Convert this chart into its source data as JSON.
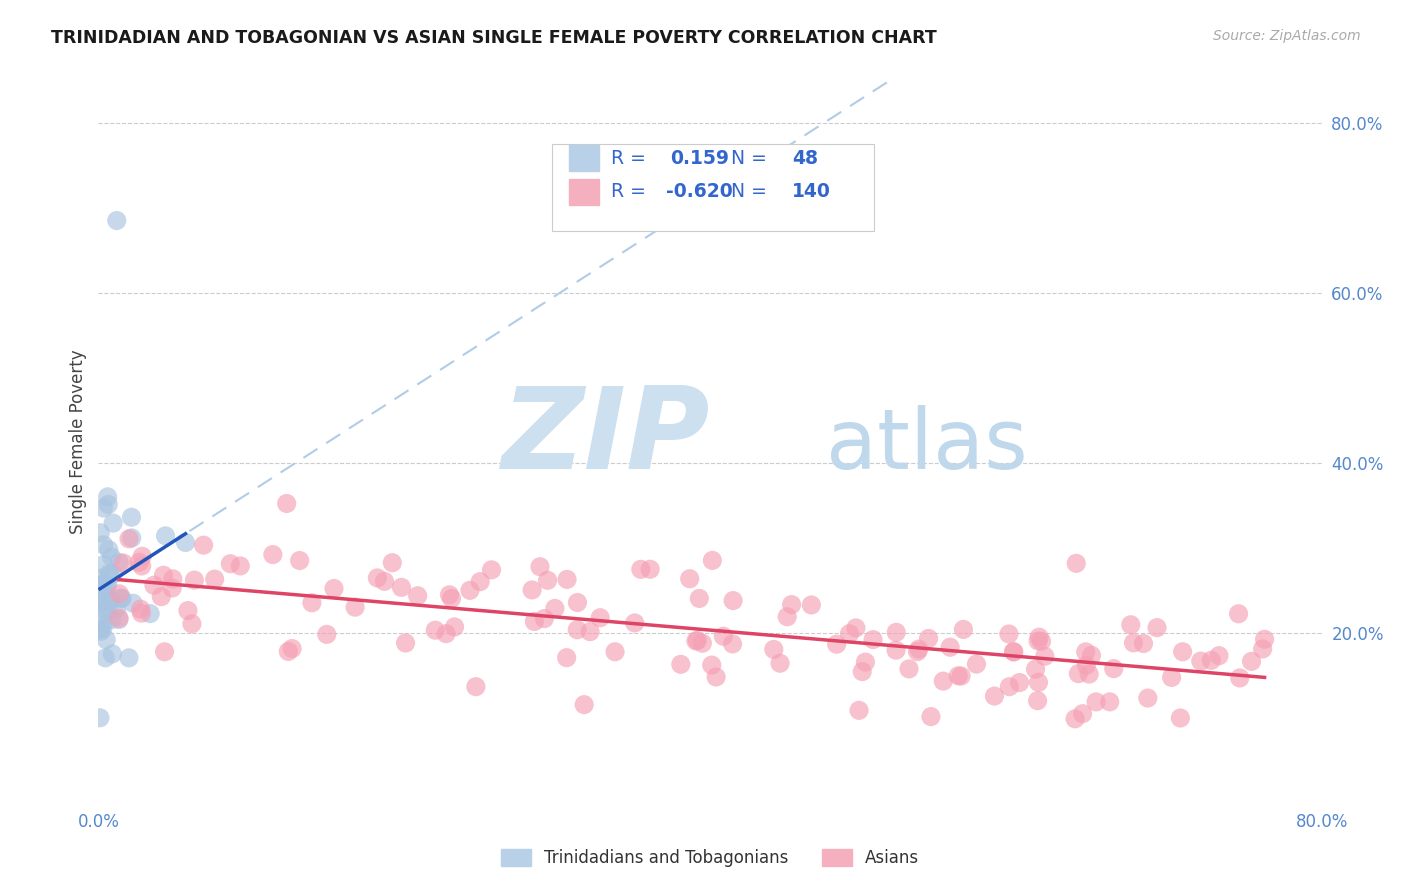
{
  "title": "TRINIDADIAN AND TOBAGONIAN VS ASIAN SINGLE FEMALE POVERTY CORRELATION CHART",
  "source": "Source: ZipAtlas.com",
  "ylabel": "Single Female Poverty",
  "xlim": [
    0.0,
    0.8
  ],
  "ylim": [
    0.0,
    0.85
  ],
  "blue_R": 0.159,
  "blue_N": 48,
  "pink_R": -0.62,
  "pink_N": 140,
  "blue_scatter_color": "#a8c4e0",
  "pink_scatter_color": "#f5a0b5",
  "blue_solid_line_color": "#2255bb",
  "pink_solid_line_color": "#dd4466",
  "blue_dash_color": "#b0cce8",
  "legend_blue_label": "Trinidadians and Tobagonians",
  "legend_pink_label": "Asians",
  "tick_color": "#5588cc",
  "grid_color": "#cccccc",
  "legend_text_color": "#3366cc",
  "watermark_zip_color": "#cce0f0",
  "watermark_atlas_color": "#c0d8ec"
}
